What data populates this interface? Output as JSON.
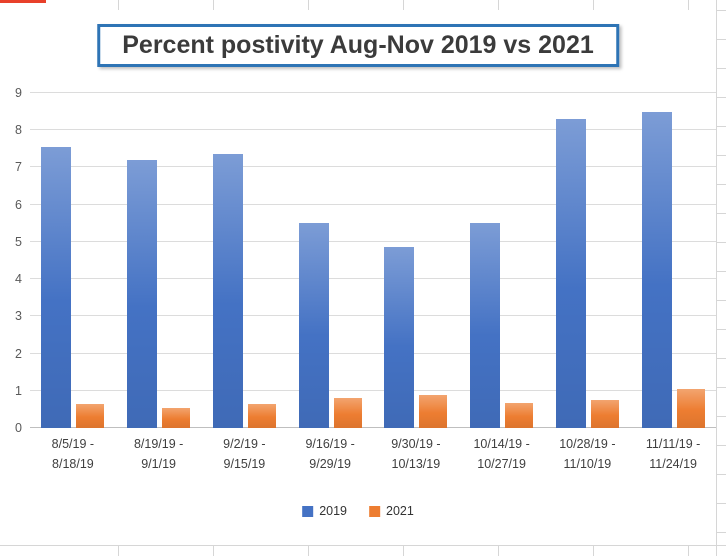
{
  "chart_data": {
    "type": "bar",
    "title": "Percent postivity Aug-Nov 2019 vs 2021",
    "categories": [
      "8/5/19 -\n8/18/19",
      "8/19/19 -\n9/1/19",
      "9/2/19 -\n9/15/19",
      "9/16/19 -\n9/29/19",
      "9/30/19 -\n10/13/19",
      "10/14/19 -\n10/27/19",
      "10/28/19 -\n11/10/19",
      "11/11/19 -\n11/24/19"
    ],
    "series": [
      {
        "name": "2019",
        "color": "#4472c4",
        "values": [
          7.55,
          7.2,
          7.35,
          5.5,
          4.85,
          5.5,
          8.3,
          8.5
        ]
      },
      {
        "name": "2021",
        "color": "#ed7d31",
        "values": [
          0.65,
          0.55,
          0.65,
          0.8,
          0.9,
          0.68,
          0.75,
          1.05
        ]
      }
    ],
    "ylim": [
      0,
      9
    ],
    "ytick_step": 1,
    "grid": true,
    "legend_position": "bottom"
  }
}
